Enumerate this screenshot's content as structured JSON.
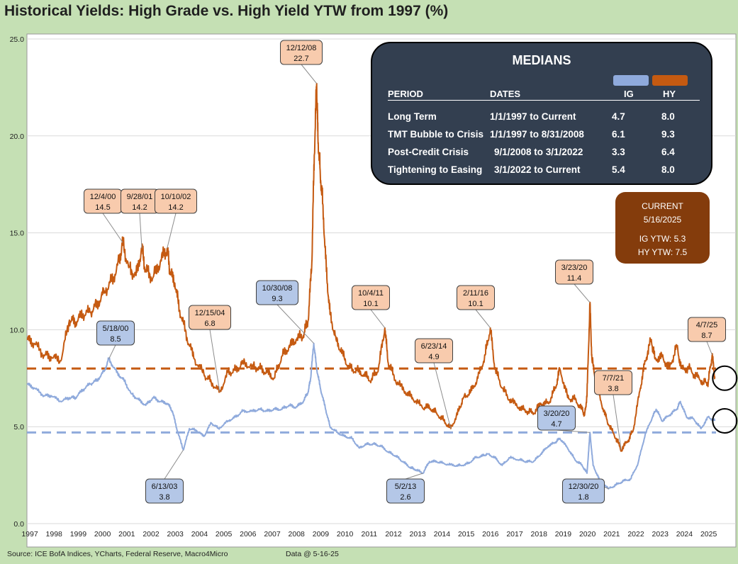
{
  "title": "Historical Yields: High Grade vs. High Yield YTW from 1997 (%)",
  "source": "Source: ICE BofA Indices, YCharts, Federal Reserve, Macro4Micro",
  "data_date": "Data @ 5-16-25",
  "colors": {
    "ig": "#8faadc",
    "hy": "#c55a11",
    "ig_label_bg": "#b4c7e7",
    "hy_label_bg": "#f8cbad",
    "plot_bg": "#ffffff",
    "page_bg": "#c5e0b4",
    "medians_bg": "#333f50",
    "current_bg": "#843c0c"
  },
  "medians": {
    "title": "MEDIANS",
    "headers": {
      "period": "PERIOD",
      "dates": "DATES",
      "ig": "IG",
      "hy": "HY"
    },
    "rows": [
      {
        "period": "Long Term",
        "dates": "1/1/1997 to Current",
        "ig": "4.7",
        "hy": "8.0"
      },
      {
        "period": "TMT Bubble to Crisis",
        "dates": "1/1/1997 to 8/31/2008",
        "ig": "6.1",
        "hy": "9.3"
      },
      {
        "period": "Post-Credit Crisis",
        "dates": "9/1/2008 to 3/1/2022",
        "ig": "3.3",
        "hy": "6.4"
      },
      {
        "period": "Tightening to Easing",
        "dates": "3/1/2022 to Current",
        "ig": "5.4",
        "hy": "8.0"
      }
    ]
  },
  "current": {
    "label": "CURRENT",
    "date": "5/16/2025",
    "ig": "IG YTW:  5.3",
    "hy": "HY YTW:  7.5"
  },
  "chart_data": {
    "type": "line",
    "ylim": [
      0,
      25
    ],
    "xlim": [
      1997.0,
      2025.42
    ],
    "yticks": [
      "0.0",
      "5.0",
      "10.0",
      "15.0",
      "20.0",
      "25.0"
    ],
    "xticks": [
      "1997",
      "1998",
      "1999",
      "2000",
      "2001",
      "2002",
      "2003",
      "2004",
      "2005",
      "2006",
      "2007",
      "2008",
      "2009",
      "2010",
      "2011",
      "2012",
      "2013",
      "2014",
      "2015",
      "2016",
      "2017",
      "2018",
      "2019",
      "2020",
      "2021",
      "2022",
      "2023",
      "2024",
      "2025"
    ],
    "medians": {
      "ig": 4.7,
      "hy": 8.0
    },
    "series": [
      {
        "key": "hy",
        "x": [
          1997.0,
          1997.3,
          1997.7,
          1998.0,
          1998.4,
          1998.75,
          1999.0,
          1999.3,
          1999.6,
          1999.9,
          2000.2,
          2000.5,
          2000.8,
          2000.95,
          2001.2,
          2001.5,
          2001.74,
          2001.9,
          2002.2,
          2002.5,
          2002.78,
          2002.9,
          2003.1,
          2003.3,
          2003.6,
          2003.9,
          2004.3,
          2004.6,
          2004.95,
          2005.3,
          2005.6,
          2005.9,
          2006.3,
          2006.6,
          2006.9,
          2007.2,
          2007.5,
          2007.8,
          2008.1,
          2008.4,
          2008.6,
          2008.75,
          2008.85,
          2008.95,
          2009.0,
          2009.1,
          2009.2,
          2009.35,
          2009.5,
          2009.75,
          2010.0,
          2010.3,
          2010.6,
          2010.9,
          2011.2,
          2011.5,
          2011.76,
          2011.9,
          2012.2,
          2012.6,
          2012.9,
          2013.3,
          2013.6,
          2013.9,
          2014.2,
          2014.48,
          2014.8,
          2015.0,
          2015.3,
          2015.6,
          2015.9,
          2016.11,
          2016.3,
          2016.6,
          2016.9,
          2017.3,
          2017.6,
          2017.9,
          2018.2,
          2018.5,
          2018.8,
          2018.98,
          2019.3,
          2019.6,
          2019.9,
          2020.0,
          2020.1,
          2020.22,
          2020.3,
          2020.5,
          2020.8,
          2020.99,
          2021.3,
          2021.51,
          2021.8,
          2022.0,
          2022.3,
          2022.5,
          2022.75,
          2022.9,
          2023.2,
          2023.5,
          2023.8,
          2023.99,
          2024.3,
          2024.6,
          2024.9,
          2025.1,
          2025.26,
          2025.37
        ],
        "values": [
          9.5,
          9.3,
          8.7,
          8.6,
          8.4,
          10.5,
          10.4,
          10.8,
          10.9,
          11.3,
          12.0,
          12.5,
          13.5,
          14.5,
          13.2,
          12.8,
          14.2,
          13.0,
          12.7,
          13.5,
          14.2,
          13.0,
          12.4,
          11.0,
          9.6,
          8.5,
          7.7,
          7.3,
          6.8,
          7.8,
          7.9,
          8.3,
          8.1,
          8.0,
          7.8,
          7.5,
          8.6,
          9.1,
          9.5,
          9.7,
          10.5,
          13.5,
          19.0,
          22.7,
          20.0,
          18.0,
          16.5,
          13.0,
          10.8,
          9.5,
          8.8,
          8.0,
          7.9,
          7.7,
          7.4,
          8.0,
          10.1,
          8.3,
          7.4,
          6.8,
          6.5,
          6.0,
          6.0,
          5.7,
          5.3,
          4.9,
          5.8,
          6.5,
          6.8,
          7.5,
          8.7,
          10.1,
          8.0,
          7.0,
          6.4,
          6.0,
          5.8,
          5.7,
          6.2,
          6.2,
          7.0,
          8.0,
          6.5,
          6.4,
          5.9,
          5.6,
          6.6,
          11.4,
          8.5,
          7.0,
          5.8,
          5.1,
          4.4,
          3.8,
          4.3,
          4.8,
          7.0,
          8.4,
          9.5,
          8.5,
          8.6,
          8.0,
          9.2,
          8.0,
          8.0,
          7.6,
          7.3,
          7.3,
          8.7,
          7.5
        ]
      },
      {
        "key": "ig",
        "x": [
          1997.0,
          1997.3,
          1997.7,
          1998.0,
          1998.4,
          1998.75,
          1999.0,
          1999.3,
          1999.6,
          1999.9,
          2000.2,
          2000.38,
          2000.7,
          2001.0,
          2001.3,
          2001.6,
          2001.9,
          2002.2,
          2002.5,
          2002.8,
          2003.0,
          2003.2,
          2003.45,
          2003.7,
          2004.0,
          2004.3,
          2004.6,
          2004.9,
          2005.3,
          2005.6,
          2005.9,
          2006.3,
          2006.6,
          2006.9,
          2007.2,
          2007.5,
          2007.8,
          2008.1,
          2008.4,
          2008.6,
          2008.7,
          2008.83,
          2008.95,
          2009.1,
          2009.3,
          2009.5,
          2009.8,
          2010.1,
          2010.4,
          2010.7,
          2011.0,
          2011.3,
          2011.6,
          2011.9,
          2012.2,
          2012.5,
          2012.8,
          2013.0,
          2013.33,
          2013.6,
          2013.9,
          2014.2,
          2014.6,
          2014.9,
          2015.2,
          2015.5,
          2015.8,
          2016.0,
          2016.3,
          2016.6,
          2016.9,
          2017.3,
          2017.6,
          2017.9,
          2018.2,
          2018.5,
          2018.8,
          2018.98,
          2019.3,
          2019.6,
          2019.9,
          2020.1,
          2020.22,
          2020.35,
          2020.6,
          2020.99,
          2021.3,
          2021.6,
          2021.9,
          2022.2,
          2022.5,
          2022.8,
          2022.95,
          2023.2,
          2023.5,
          2023.8,
          2023.95,
          2024.2,
          2024.5,
          2024.8,
          2025.1,
          2025.37
        ],
        "values": [
          7.2,
          7.0,
          6.6,
          6.6,
          6.3,
          6.5,
          6.5,
          6.9,
          7.2,
          7.4,
          7.9,
          8.5,
          7.8,
          7.4,
          6.7,
          6.4,
          6.1,
          6.5,
          6.3,
          6.2,
          5.8,
          4.8,
          3.8,
          4.9,
          4.8,
          4.5,
          5.2,
          4.9,
          5.3,
          5.5,
          5.8,
          5.8,
          5.9,
          5.8,
          5.9,
          5.9,
          6.1,
          6.0,
          6.3,
          6.8,
          7.5,
          9.3,
          8.0,
          7.0,
          6.0,
          5.0,
          4.7,
          4.5,
          4.4,
          3.9,
          4.1,
          4.1,
          4.0,
          3.7,
          3.5,
          3.2,
          2.9,
          2.8,
          2.6,
          3.2,
          3.2,
          3.1,
          3.0,
          3.0,
          3.1,
          3.4,
          3.5,
          3.6,
          3.4,
          3.0,
          3.4,
          3.3,
          3.2,
          3.2,
          3.6,
          4.0,
          4.2,
          4.4,
          3.9,
          3.3,
          3.0,
          2.6,
          4.7,
          3.0,
          2.3,
          1.8,
          2.0,
          2.2,
          2.3,
          3.1,
          4.6,
          5.5,
          5.9,
          5.3,
          5.6,
          5.9,
          6.3,
          5.5,
          5.4,
          4.9,
          5.5,
          5.3
        ]
      }
    ],
    "annotations": [
      {
        "series": "hy",
        "date": "12/12/08",
        "value": "22.7",
        "x": 2008.95,
        "y": 22.7
      },
      {
        "series": "hy",
        "date": "12/4/00",
        "value": "14.5",
        "x": 2000.95,
        "y": 14.5
      },
      {
        "series": "hy",
        "date": "9/28/01",
        "value": "14.2",
        "x": 2001.74,
        "y": 14.2
      },
      {
        "series": "hy",
        "date": "10/10/02",
        "value": "14.2",
        "x": 2002.78,
        "y": 14.2
      },
      {
        "series": "hy",
        "date": "12/15/04",
        "value": "6.8",
        "x": 2004.95,
        "y": 6.8
      },
      {
        "series": "hy",
        "date": "10/4/11",
        "value": "10.1",
        "x": 2011.76,
        "y": 10.1
      },
      {
        "series": "hy",
        "date": "6/23/14",
        "value": "4.9",
        "x": 2014.48,
        "y": 4.9
      },
      {
        "series": "hy",
        "date": "2/11/16",
        "value": "10.1",
        "x": 2016.11,
        "y": 10.1
      },
      {
        "series": "hy",
        "date": "3/23/20",
        "value": "11.4",
        "x": 2020.22,
        "y": 11.4
      },
      {
        "series": "hy",
        "date": "7/7/21",
        "value": "3.8",
        "x": 2021.51,
        "y": 3.8
      },
      {
        "series": "hy",
        "date": "4/7/25",
        "value": "8.7",
        "x": 2025.26,
        "y": 8.7
      },
      {
        "series": "ig",
        "date": "5/18/00",
        "value": "8.5",
        "x": 2000.38,
        "y": 8.5
      },
      {
        "series": "ig",
        "date": "10/30/08",
        "value": "9.3",
        "x": 2008.83,
        "y": 9.3
      },
      {
        "series": "ig",
        "date": "6/13/03",
        "value": "3.8",
        "x": 2003.45,
        "y": 3.8
      },
      {
        "series": "ig",
        "date": "5/2/13",
        "value": "2.6",
        "x": 2013.33,
        "y": 2.6
      },
      {
        "series": "ig",
        "date": "3/20/20",
        "value": "4.7",
        "x": 2020.22,
        "y": 4.7
      },
      {
        "series": "ig",
        "date": "12/30/20",
        "value": "1.8",
        "x": 2020.99,
        "y": 1.8
      }
    ],
    "current_markers": [
      {
        "series": "hy",
        "x": 2025.37,
        "y": 7.5
      },
      {
        "series": "ig",
        "x": 2025.37,
        "y": 5.3
      }
    ]
  }
}
